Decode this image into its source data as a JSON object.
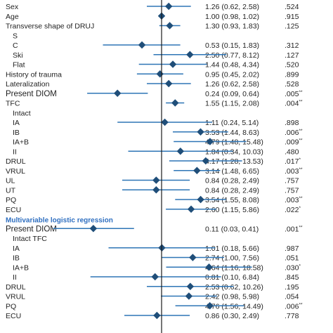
{
  "colors": {
    "marker": "#1f4e79",
    "line": "#2e75b6",
    "refline": "#1a1a1a",
    "section": "#2f6fc0",
    "text": "#1f1f1f"
  },
  "chart_data": {
    "type": "forest",
    "reference_line": 1,
    "xlim": [
      0.03,
      20
    ],
    "x_scale": "log",
    "sections": [
      {
        "title": "",
        "title_visible": false
      },
      {
        "title": "Multivariable logistic regression"
      }
    ],
    "rows": [
      {
        "label": "Sex",
        "indent": 0,
        "or": 1.26,
        "lo": 0.62,
        "hi": 2.58,
        "ci_text": "1.26 (0.62, 2.58)",
        "p": ".524",
        "sig": ""
      },
      {
        "label": "Age",
        "indent": 0,
        "or": 1.0,
        "lo": 0.98,
        "hi": 1.02,
        "ci_text": "1.00 (0.98, 1.02)",
        "p": ".915",
        "sig": ""
      },
      {
        "label": "Transverse shape of DRUJ",
        "indent": 0,
        "or": 1.3,
        "lo": 0.93,
        "hi": 1.83,
        "ci_text": "1.30 (0.93, 1.83)",
        "p": ".125",
        "sig": ""
      },
      {
        "label": "S",
        "indent": 1
      },
      {
        "label": "C",
        "indent": 1,
        "or": 0.53,
        "lo": 0.15,
        "hi": 1.83,
        "ci_text": "0.53 (0.15, 1.83)",
        "p": ".312",
        "sig": ""
      },
      {
        "label": "Ski",
        "indent": 1,
        "or": 2.5,
        "lo": 0.77,
        "hi": 8.12,
        "ci_text": "2.50 (0.77, 8.12)",
        "p": ".127",
        "sig": ""
      },
      {
        "label": "Flat",
        "indent": 1,
        "or": 1.44,
        "lo": 0.48,
        "hi": 4.34,
        "ci_text": "1.44 (0.48, 4.34)",
        "p": ".520",
        "sig": ""
      },
      {
        "label": "History of trauma",
        "indent": 0,
        "or": 0.95,
        "lo": 0.45,
        "hi": 2.02,
        "ci_text": "0.95 (0.45, 2.02)",
        "p": ".899",
        "sig": ""
      },
      {
        "label": "Lateralization",
        "indent": 0,
        "or": 1.26,
        "lo": 0.62,
        "hi": 2.58,
        "ci_text": "1.26 (0.62, 2.58)",
        "p": ".528",
        "sig": ""
      },
      {
        "label": "Present  DIOM",
        "indent": 0,
        "big": true,
        "or": 0.24,
        "lo": 0.09,
        "hi": 0.64,
        "ci_text": "0.24 (0.09, 0.64)",
        "p": ".005",
        "sig": "**"
      },
      {
        "label": "TFC",
        "indent": 0,
        "or": 1.55,
        "lo": 1.15,
        "hi": 2.08,
        "ci_text": "1.55 (1.15, 2.08)",
        "p": ".004",
        "sig": "**"
      },
      {
        "label": "Intact",
        "indent": 1
      },
      {
        "label": "IA",
        "indent": 1,
        "or": 1.11,
        "lo": 0.24,
        "hi": 5.14,
        "ci_text": "1.11 (0.24, 5.14)",
        "p": ".898",
        "sig": ""
      },
      {
        "label": "IB",
        "indent": 1,
        "or": 3.53,
        "lo": 1.44,
        "hi": 8.63,
        "ci_text": "3.53 (1.44, 8.63)",
        "p": ".006",
        "sig": "**"
      },
      {
        "label": "IA+B",
        "indent": 1,
        "or": 4.79,
        "lo": 1.48,
        "hi": 15.48,
        "ci_text": "4.79 (1.48, 15.48)",
        "p": ".009",
        "sig": "**"
      },
      {
        "label": "II",
        "indent": 1,
        "or": 1.84,
        "lo": 0.34,
        "hi": 10.03,
        "ci_text": "1.84 (0.34, 10.03)",
        "p": ".480",
        "sig": ""
      },
      {
        "label": "DRUL",
        "indent": 0,
        "or": 4.17,
        "lo": 1.28,
        "hi": 13.53,
        "ci_text": "4.17 (1.28, 13.53)",
        "p": ".017",
        "sig": "*"
      },
      {
        "label": "VRUL",
        "indent": 0,
        "or": 3.14,
        "lo": 1.48,
        "hi": 6.65,
        "ci_text": "3.14 (1.48, 6.65)",
        "p": ".003",
        "sig": "**"
      },
      {
        "label": "UL",
        "indent": 0,
        "or": 0.84,
        "lo": 0.28,
        "hi": 2.49,
        "ci_text": "0.84 (0.28, 2.49)",
        "p": ".757",
        "sig": ""
      },
      {
        "label": "UT",
        "indent": 0,
        "or": 0.84,
        "lo": 0.28,
        "hi": 2.49,
        "ci_text": "0.84 (0.28, 2.49)",
        "p": ".757",
        "sig": ""
      },
      {
        "label": "PQ",
        "indent": 0,
        "or": 3.54,
        "lo": 1.55,
        "hi": 8.08,
        "ci_text": "3.54 (1.55, 8.08)",
        "p": ".003",
        "sig": "**"
      },
      {
        "label": "ECU",
        "indent": 0,
        "or": 2.6,
        "lo": 1.15,
        "hi": 5.86,
        "ci_text": "2.60 (1.15, 5.86)",
        "p": ".022",
        "sig": "*"
      },
      {
        "section": "Multivariable logistic regression"
      },
      {
        "label": "Present  DIOM",
        "indent": 0,
        "big": true,
        "or": 0.11,
        "lo": 0.03,
        "hi": 0.41,
        "ci_text": "0.11 (0.03, 0.41)",
        "p": ".001",
        "sig": "**"
      },
      {
        "label": "Intact TFC",
        "indent": 1
      },
      {
        "label": "IA",
        "indent": 1,
        "or": 1.01,
        "lo": 0.18,
        "hi": 5.66,
        "ci_text": "1.01 (0.18, 5.66)",
        "p": ".987",
        "sig": ""
      },
      {
        "label": "IB",
        "indent": 1,
        "or": 2.74,
        "lo": 1.0,
        "hi": 7.56,
        "ci_text": "2.74 (1.00, 7.56)",
        "p": ".051",
        "sig": ""
      },
      {
        "label": "IA+B",
        "indent": 1,
        "or": 4.64,
        "lo": 1.16,
        "hi": 18.58,
        "ci_text": "4.64 (1.16, 18.58)",
        "p": ".030",
        "sig": "*"
      },
      {
        "label": "II",
        "indent": 1,
        "or": 0.81,
        "lo": 0.1,
        "hi": 6.84,
        "ci_text": "0.81 (0.10, 6.84)",
        "p": ".845",
        "sig": ""
      },
      {
        "label": "DRUL",
        "indent": 0,
        "or": 2.53,
        "lo": 0.62,
        "hi": 10.26,
        "ci_text": "2.53 (0.62, 10.26)",
        "p": ".195",
        "sig": ""
      },
      {
        "label": "VRUL",
        "indent": 0,
        "or": 2.42,
        "lo": 0.98,
        "hi": 5.98,
        "ci_text": "2.42 (0.98, 5.98)",
        "p": ".054",
        "sig": ""
      },
      {
        "label": "PQ",
        "indent": 0,
        "or": 4.76,
        "lo": 1.56,
        "hi": 14.49,
        "ci_text": "4.76 (1.56, 14.49)",
        "p": ".006",
        "sig": "**"
      },
      {
        "label": "ECU",
        "indent": 0,
        "or": 0.86,
        "lo": 0.3,
        "hi": 2.49,
        "ci_text": "0.86 (0.30, 2.49)",
        "p": ".778",
        "sig": ""
      }
    ]
  }
}
